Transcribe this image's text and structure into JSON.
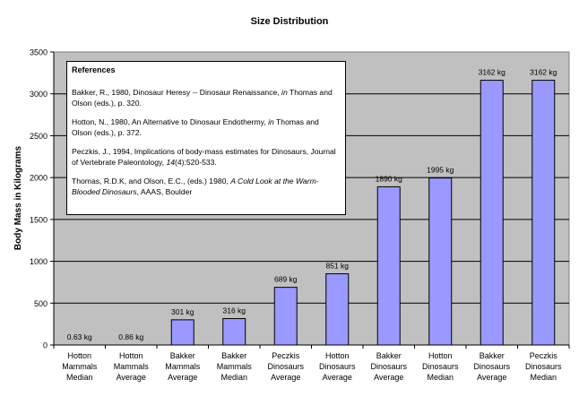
{
  "chart_data": {
    "type": "bar",
    "title": "Size Distribution",
    "xlabel": "",
    "ylabel": "Body Mass in Kilograms",
    "ylim": [
      0,
      3500
    ],
    "yticks": [
      0,
      500,
      1000,
      1500,
      2000,
      2500,
      3000,
      3500
    ],
    "grid": true,
    "legend": "none",
    "colors": {
      "plot_bg": "#c0c0c0",
      "bar_fill": "#9999ff",
      "bar_stroke": "#000000",
      "grid": "#000000"
    },
    "categories": [
      [
        "Hotton",
        "Mammals",
        "Median"
      ],
      [
        "Hotton",
        "Mammals",
        "Average"
      ],
      [
        "Bakker",
        "Mammals",
        "Average"
      ],
      [
        "Bakker",
        "Mammals",
        "Median"
      ],
      [
        "Peczkis",
        "Dinosaurs",
        "Average"
      ],
      [
        "Hotton",
        "Dinosaurs",
        "Average"
      ],
      [
        "Bakker",
        "Dinosaurs",
        "Average"
      ],
      [
        "Hotton",
        "Dinosaurs",
        "Median"
      ],
      [
        "Bakker",
        "Dinosaurs",
        "Average"
      ],
      [
        "Peczkis",
        "Dinosaurs",
        "Median"
      ]
    ],
    "values": [
      0.63,
      0.86,
      301,
      316,
      689,
      851,
      1890,
      1995,
      3162,
      3162
    ],
    "data_labels": [
      "0.63 kg",
      "0.86 kg",
      "301 kg",
      "316 kg",
      "689 kg",
      "851 kg",
      "1890 kg",
      "1995 kg",
      "3162 kg",
      "3162 kg"
    ]
  },
  "references": {
    "heading": "References",
    "items": [
      {
        "before": "Bakker, R., 1980, Dinosaur Heresy -- Dinosaur Renaissance, ",
        "italic": "in",
        "after": " Thomas and Olson (eds.), p. 320."
      },
      {
        "before": "Hotton, N., 1980, An Alternative to Dinosaur Endothermy, ",
        "italic": "in",
        "after": " Thomas and Olson (eds.), p. 372."
      },
      {
        "before": "Peczkis, J., 1994, Implications of body-mass estimates for Dinosaurs, Journal of Vertebrate Paleontology, ",
        "italic": "14",
        "after": "(4):520-533."
      },
      {
        "before": "Thomas, R.D.K, and Olson, E.C., (eds.) 1980, ",
        "italic": "A Cold Look at the Warm-Blooded Dinosaurs",
        "after": ", AAAS, Boulder"
      }
    ]
  }
}
